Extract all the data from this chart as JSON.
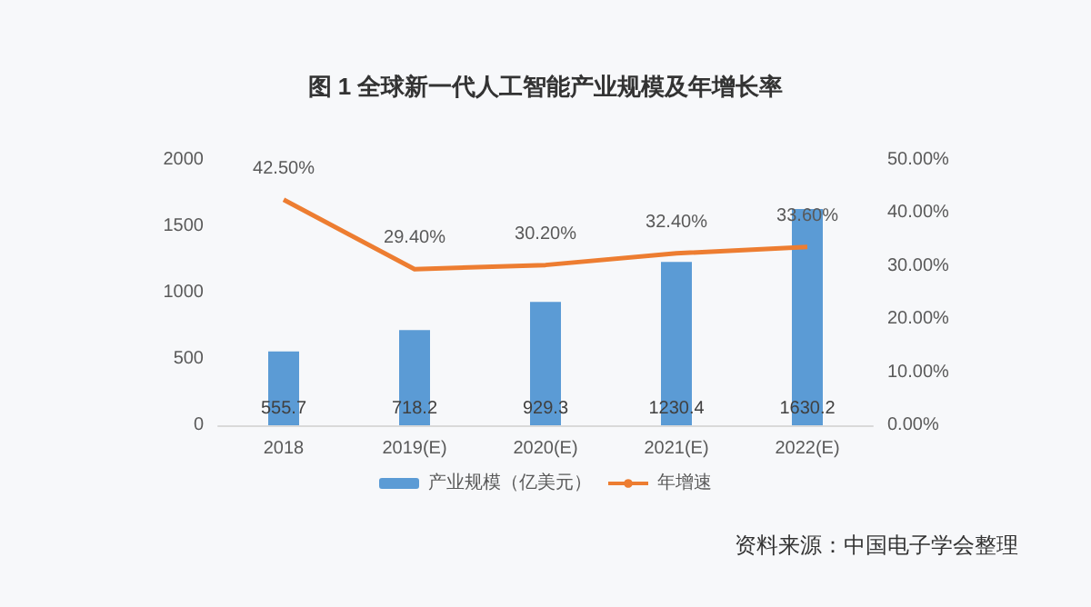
{
  "chart_data": {
    "type": "bar",
    "title": "图 1 全球新一代人工智能产业规模及年增长率",
    "categories": [
      "2018",
      "2019(E)",
      "2020(E)",
      "2021(E)",
      "2022(E)"
    ],
    "series": [
      {
        "name": "产业规模（亿美元）",
        "color": "#5b9bd5",
        "values": [
          555.7,
          718.2,
          929.3,
          1230.4,
          1630.2
        ],
        "value_labels": [
          "555.7",
          "718.2",
          "929.3",
          "1230.4",
          "1630.2"
        ]
      },
      {
        "name": "年增速",
        "type": "line",
        "axis": "y2",
        "color": "#ed7d31",
        "values": [
          42.5,
          29.4,
          30.2,
          32.4,
          33.6
        ],
        "value_labels": [
          "42.50%",
          "29.40%",
          "30.20%",
          "32.40%",
          "33.60%"
        ]
      }
    ],
    "ylim": [
      0,
      2000
    ],
    "yticks": [
      0,
      500,
      1000,
      1500,
      2000
    ],
    "y2lim": [
      0,
      50
    ],
    "y2ticks": [
      {
        "value": 0,
        "label": "0.00%"
      },
      {
        "value": 10,
        "label": "10.00%"
      },
      {
        "value": 20,
        "label": "20.00%"
      },
      {
        "value": 30,
        "label": "30.00%"
      },
      {
        "value": 40,
        "label": "40.00%"
      },
      {
        "value": 50,
        "label": "50.00%"
      }
    ],
    "legend": "bottom",
    "grid": false,
    "marker": "none",
    "annotations": [
      "资料来源：中国电子学会整理"
    ]
  }
}
